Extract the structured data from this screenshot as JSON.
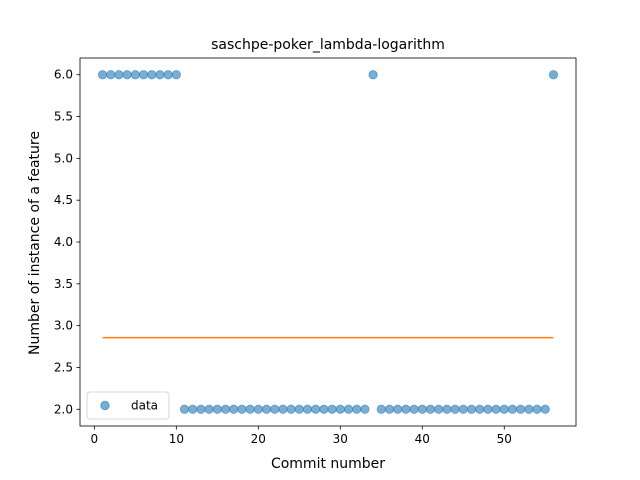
{
  "chart_data": {
    "type": "scatter",
    "title": "saschpe-poker_lambda-logarithm",
    "xlabel": "Commit number",
    "ylabel": "Number of instance of a feature",
    "xlim": [
      -1.75,
      58.75
    ],
    "ylim": [
      1.8,
      6.2
    ],
    "xticks": [
      0,
      10,
      20,
      30,
      40,
      50
    ],
    "xtick_labels": [
      "0",
      "10",
      "20",
      "30",
      "40",
      "50"
    ],
    "yticks": [
      2.0,
      2.5,
      3.0,
      3.5,
      4.0,
      4.5,
      5.0,
      5.5,
      6.0
    ],
    "ytick_labels": [
      "2.0",
      "2.5",
      "3.0",
      "3.5",
      "4.0",
      "4.5",
      "5.0",
      "5.5",
      "6.0"
    ],
    "grid": false,
    "legend_position": "lower-left",
    "series": [
      {
        "name": "data",
        "kind": "scatter",
        "color": "#1f77b4",
        "x": [
          1,
          2,
          3,
          4,
          5,
          6,
          7,
          8,
          9,
          10,
          11,
          12,
          13,
          14,
          15,
          16,
          17,
          18,
          19,
          20,
          21,
          22,
          23,
          24,
          25,
          26,
          27,
          28,
          29,
          30,
          31,
          32,
          33,
          34,
          35,
          36,
          37,
          38,
          39,
          40,
          41,
          42,
          43,
          44,
          45,
          46,
          47,
          48,
          49,
          50,
          51,
          52,
          53,
          54,
          55,
          56
        ],
        "y": [
          6,
          6,
          6,
          6,
          6,
          6,
          6,
          6,
          6,
          6,
          2,
          2,
          2,
          2,
          2,
          2,
          2,
          2,
          2,
          2,
          2,
          2,
          2,
          2,
          2,
          2,
          2,
          2,
          2,
          2,
          2,
          2,
          2,
          6,
          2,
          2,
          2,
          2,
          2,
          2,
          2,
          2,
          2,
          2,
          2,
          2,
          2,
          2,
          2,
          2,
          2,
          2,
          2,
          2,
          2,
          6
        ]
      },
      {
        "kind": "line",
        "color": "#ff7f0e",
        "x": [
          1,
          56
        ],
        "y": [
          2.857,
          2.857
        ]
      }
    ]
  }
}
